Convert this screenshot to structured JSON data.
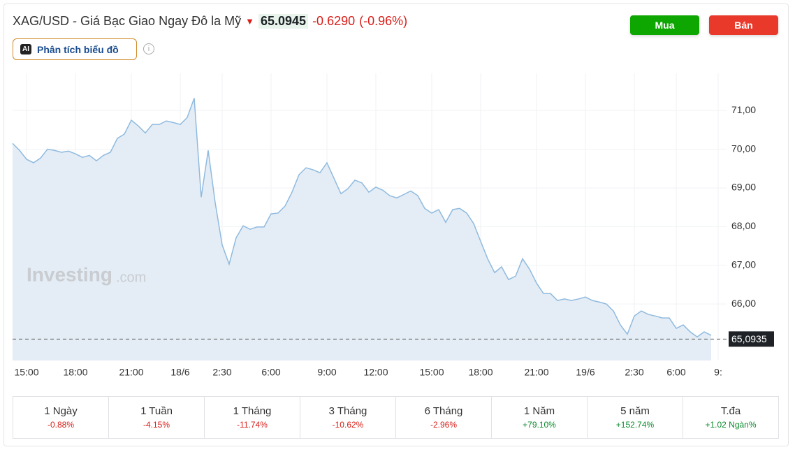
{
  "header": {
    "title": "XAG/USD - Giá Bạc Giao Ngay Đô la Mỹ",
    "price": "65.0945",
    "change": "-0.6290",
    "change_pct": "(-0.96%)",
    "buy": "Mua",
    "sell": "Bán",
    "ai_badge": "AI",
    "ai_button": "Phân tích biểu đồ"
  },
  "watermark": {
    "brand": "Investing",
    "suffix": ".com"
  },
  "chart_data": {
    "type": "line",
    "color": "#8fbadf",
    "fill": "#e4edf5",
    "categories": [
      null,
      null,
      "15:00",
      null,
      null,
      null,
      null,
      null,
      null,
      "18:00",
      null,
      null,
      null,
      null,
      null,
      null,
      null,
      "21:00",
      null,
      null,
      null,
      null,
      null,
      null,
      "18/6",
      null,
      null,
      null,
      null,
      null,
      "2:30",
      null,
      null,
      null,
      null,
      null,
      null,
      "6:00",
      null,
      null,
      null,
      null,
      null,
      null,
      null,
      "9:00",
      null,
      null,
      null,
      null,
      null,
      null,
      "12:00",
      null,
      null,
      null,
      null,
      null,
      null,
      null,
      "15:00",
      null,
      null,
      null,
      null,
      null,
      null,
      "18:00",
      null,
      null,
      null,
      null,
      null,
      null,
      null,
      "21:00",
      null,
      null,
      null,
      null,
      null,
      null,
      "19/6",
      null,
      null,
      null,
      null,
      null,
      null,
      "2:30",
      null,
      null,
      null,
      null,
      null,
      "6:00",
      null,
      null,
      null,
      null,
      null,
      "9:"
    ],
    "values": [
      70.15,
      69.97,
      69.74,
      69.65,
      69.77,
      70.0,
      69.97,
      69.92,
      69.95,
      69.88,
      69.79,
      69.84,
      69.7,
      69.84,
      69.92,
      70.28,
      70.39,
      70.75,
      70.6,
      70.42,
      70.64,
      70.64,
      70.73,
      70.69,
      70.64,
      70.82,
      71.32,
      68.76,
      69.97,
      68.62,
      67.53,
      67.03,
      67.71,
      68.02,
      67.93,
      67.99,
      67.99,
      68.33,
      68.35,
      68.53,
      68.89,
      69.34,
      69.52,
      69.47,
      69.39,
      69.65,
      69.25,
      68.85,
      68.98,
      69.2,
      69.13,
      68.89,
      69.02,
      68.94,
      68.8,
      68.74,
      68.83,
      68.92,
      68.8,
      68.47,
      68.35,
      68.44,
      68.11,
      68.44,
      68.47,
      68.35,
      68.08,
      67.62,
      67.17,
      66.81,
      66.96,
      66.63,
      66.72,
      67.17,
      66.9,
      66.54,
      66.27,
      66.27,
      66.09,
      66.13,
      66.09,
      66.13,
      66.18,
      66.09,
      66.05,
      66.0,
      65.82,
      65.46,
      65.22,
      65.69,
      65.82,
      65.73,
      65.69,
      65.64,
      65.64,
      65.37,
      65.46,
      65.28,
      65.15,
      65.28,
      65.19,
      null
    ],
    "ylim": [
      64.54,
      71.96
    ],
    "yticks": [
      {
        "value": 66,
        "label": "66,00"
      },
      {
        "value": 67,
        "label": "67,00"
      },
      {
        "value": 68,
        "label": "68,00"
      },
      {
        "value": 69,
        "label": "69,00"
      },
      {
        "value": 70,
        "label": "70,00"
      },
      {
        "value": 71,
        "label": "71,00"
      }
    ],
    "current_price": {
      "value": 65.0935,
      "label": "65,0935"
    },
    "grid": true
  },
  "performance": [
    {
      "period": "1 Ngày",
      "change": "-0.88%"
    },
    {
      "period": "1 Tuần",
      "change": "-4.15%"
    },
    {
      "period": "1 Tháng",
      "change": "-11.74%"
    },
    {
      "period": "3 Tháng",
      "change": "-10.62%"
    },
    {
      "period": "6 Tháng",
      "change": "-2.96%"
    },
    {
      "period": "1 Năm",
      "change": "+79.10%"
    },
    {
      "period": "5 năm",
      "change": "+152.74%"
    },
    {
      "period": "T.đa",
      "change": "+1.02 Ngàn%"
    }
  ]
}
